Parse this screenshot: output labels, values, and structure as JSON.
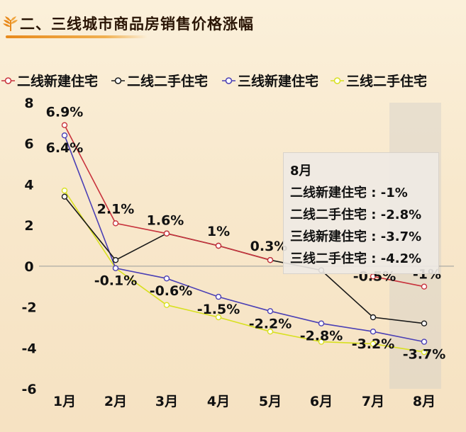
{
  "header": {
    "title": "二、三线城市商品房销售价格涨幅"
  },
  "colors": {
    "accent": "#e88a1c",
    "series": [
      "#c8323c",
      "#1a1a1a",
      "#4a3fb5",
      "#d8e020"
    ]
  },
  "chart_data": {
    "type": "line",
    "title": "二、三线城市商品房销售价格涨幅",
    "xlabel": "",
    "ylabel": "",
    "categories": [
      "1月",
      "2月",
      "3月",
      "4月",
      "5月",
      "6月",
      "7月",
      "8月"
    ],
    "ylim": [
      -6,
      8
    ],
    "yticks": [
      -6,
      -4,
      -2,
      0,
      2,
      4,
      6,
      8
    ],
    "grid": false,
    "legend_position": "top",
    "series": [
      {
        "name": "二线新建住宅",
        "values": [
          6.9,
          2.1,
          1.6,
          1,
          0.3,
          null,
          -0.5,
          -1
        ]
      },
      {
        "name": "二线二手住宅",
        "values": [
          3.4,
          0.3,
          1.6,
          1,
          0.3,
          -0.2,
          -2.5,
          -2.8
        ]
      },
      {
        "name": "三线新建住宅",
        "values": [
          6.4,
          -0.1,
          -0.6,
          -1.5,
          -2.2,
          -2.8,
          -3.2,
          -3.7
        ]
      },
      {
        "name": "三线二手住宅",
        "values": [
          3.7,
          -0.1,
          -1.9,
          -2.5,
          -3.2,
          -3.7,
          -3.8,
          -4.2
        ]
      }
    ],
    "data_labels": [
      {
        "text": "6.9%",
        "x": "1月",
        "y": 6.9
      },
      {
        "text": "6.4%",
        "x": "1月",
        "y": 6.4
      },
      {
        "text": "2.1%",
        "x": "2月",
        "y": 2.1
      },
      {
        "text": "-0.1%",
        "x": "2月",
        "y": -0.1
      },
      {
        "text": "1.6%",
        "x": "3月",
        "y": 1.6
      },
      {
        "text": "-0.6%",
        "x": "3月",
        "y": -0.6
      },
      {
        "text": "1%",
        "x": "4月",
        "y": 1
      },
      {
        "text": "-1.5%",
        "x": "4月",
        "y": -1.5
      },
      {
        "text": "0.3%",
        "x": "5月",
        "y": 0.3
      },
      {
        "text": "-2.2%",
        "x": "5月",
        "y": -2.2
      },
      {
        "text": "-2.8%",
        "x": "6月",
        "y": -2.8
      },
      {
        "text": "-0.5%",
        "x": "7月",
        "y": -0.5
      },
      {
        "text": "-3.2%",
        "x": "7月",
        "y": -3.2
      },
      {
        "text": "-1%",
        "x": "8月",
        "y": -1
      },
      {
        "text": "-3.7%",
        "x": "8月",
        "y": -3.7
      }
    ],
    "highlight_category": "8月",
    "tooltip": {
      "month": "8月",
      "rows": [
        "二线新建住宅 : -1%",
        "二线二手住宅 : -2.8%",
        "三线新建住宅 : -3.7%",
        "三线二手住宅 : -4.2%"
      ]
    }
  }
}
